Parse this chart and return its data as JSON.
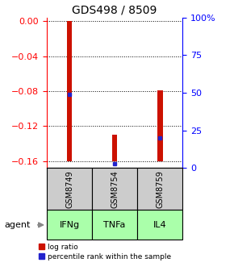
{
  "title": "GDS498 / 8509",
  "samples": [
    "GSM8749",
    "GSM8754",
    "GSM8759"
  ],
  "agents": [
    "IFNg",
    "TNFa",
    "IL4"
  ],
  "log_ratio_tops": [
    0.0,
    -0.13,
    -0.079
  ],
  "log_ratio_bottoms": [
    -0.16,
    -0.16,
    -0.16
  ],
  "percentile_ranks": [
    0.49,
    0.03,
    0.2
  ],
  "ylim_left": [
    -0.168,
    0.004
  ],
  "yticks_left": [
    0,
    -0.04,
    -0.08,
    -0.12,
    -0.16
  ],
  "yticks_right_pct": [
    0,
    25,
    50,
    75,
    100
  ],
  "bar_color": "#cc1100",
  "percentile_color": "#2222cc",
  "sample_bg": "#cccccc",
  "agent_bg": "#aaffaa",
  "bar_width": 0.12,
  "legend_entries": [
    "log ratio",
    "percentile rank within the sample"
  ]
}
